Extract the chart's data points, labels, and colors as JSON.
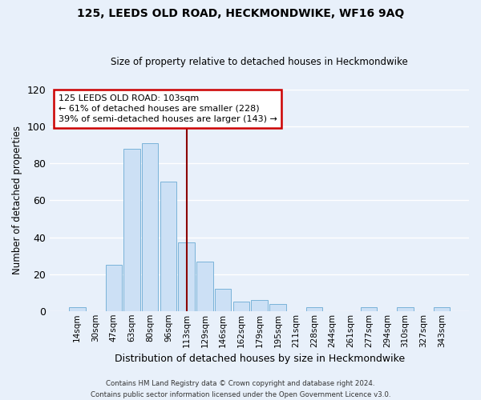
{
  "title": "125, LEEDS OLD ROAD, HECKMONDWIKE, WF16 9AQ",
  "subtitle": "Size of property relative to detached houses in Heckmondwike",
  "xlabel": "Distribution of detached houses by size in Heckmondwike",
  "ylabel": "Number of detached properties",
  "bin_labels": [
    "14sqm",
    "30sqm",
    "47sqm",
    "63sqm",
    "80sqm",
    "96sqm",
    "113sqm",
    "129sqm",
    "146sqm",
    "162sqm",
    "179sqm",
    "195sqm",
    "211sqm",
    "228sqm",
    "244sqm",
    "261sqm",
    "277sqm",
    "294sqm",
    "310sqm",
    "327sqm",
    "343sqm"
  ],
  "bar_values": [
    2,
    0,
    25,
    88,
    91,
    70,
    37,
    27,
    12,
    5,
    6,
    4,
    0,
    2,
    0,
    0,
    2,
    0,
    2,
    0,
    2
  ],
  "bar_color": "#cce0f5",
  "bar_edge_color": "#7ab3d9",
  "vline_x": 6.0,
  "vline_color": "#8b0000",
  "ylim": [
    0,
    120
  ],
  "yticks": [
    0,
    20,
    40,
    60,
    80,
    100,
    120
  ],
  "annotation_title": "125 LEEDS OLD ROAD: 103sqm",
  "annotation_line1": "← 61% of detached houses are smaller (228)",
  "annotation_line2": "39% of semi-detached houses are larger (143) →",
  "annotation_box_color": "#ffffff",
  "annotation_box_edge": "#cc0000",
  "footer_line1": "Contains HM Land Registry data © Crown copyright and database right 2024.",
  "footer_line2": "Contains public sector information licensed under the Open Government Licence v3.0.",
  "background_color": "#e8f0fa",
  "grid_color": "#ffffff"
}
